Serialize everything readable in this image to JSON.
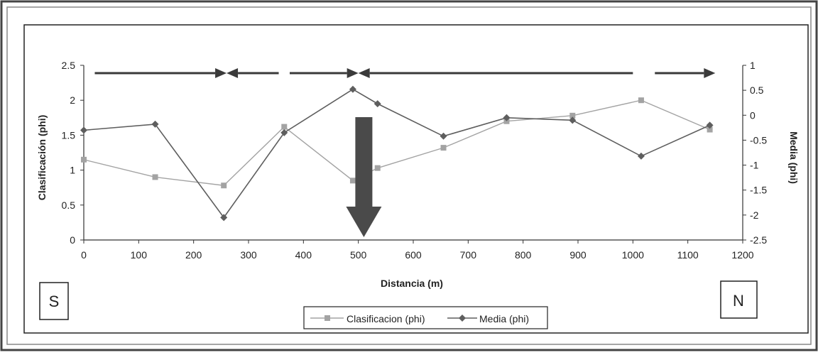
{
  "chart_data": {
    "type": "line",
    "title": "",
    "xlabel": "Distancia (m)",
    "ylabel_left": "Clasificación (phi)",
    "ylabel_right": "Media (phi)",
    "xlim": [
      0,
      1200
    ],
    "xticks": [
      0,
      100,
      200,
      300,
      400,
      500,
      600,
      700,
      800,
      900,
      1000,
      1100,
      1200
    ],
    "ylim_left": [
      0,
      2.5
    ],
    "yticks_left": [
      "0",
      "0.5",
      "1",
      "1.5",
      "2",
      "2.5"
    ],
    "ylim_right": [
      -2.5,
      1
    ],
    "yticks_right": [
      "-2.5",
      "-2",
      "-1.5",
      "-1",
      "-0.5",
      "0",
      "0.5",
      "1"
    ],
    "grid": false,
    "legend_position": "bottom",
    "series": [
      {
        "name": "Clasificacion (phi)",
        "axis": "left",
        "marker": "square",
        "color": "#a3a3a3",
        "x": [
          0,
          130,
          255,
          365,
          490,
          535,
          655,
          770,
          890,
          1015,
          1140
        ],
        "y": [
          1.15,
          0.9,
          0.78,
          1.62,
          0.85,
          1.03,
          1.32,
          1.7,
          1.78,
          2.0,
          1.58
        ]
      },
      {
        "name": "Media (phi)",
        "axis": "right",
        "marker": "diamond",
        "color": "#5e5e5e",
        "x": [
          0,
          130,
          255,
          365,
          490,
          535,
          655,
          770,
          890,
          1015,
          1140
        ],
        "y": [
          -0.3,
          -0.18,
          -2.05,
          -0.35,
          0.52,
          0.23,
          -0.42,
          -0.05,
          -0.1,
          -0.82,
          -0.2
        ]
      }
    ],
    "annotations": {
      "left_label": "S",
      "right_label": "N",
      "transport_arrows": [
        {
          "from": 20,
          "to": 260
        },
        {
          "from": 355,
          "to": 260
        },
        {
          "from": 375,
          "to": 500
        },
        {
          "from": 1000,
          "to": 500
        },
        {
          "from": 1040,
          "to": 1150
        }
      ],
      "marked_distance": 510
    }
  },
  "legend": {
    "items": [
      "Clasificacion (phi)",
      "Media (phi)"
    ]
  },
  "labels": {
    "south": "S",
    "north": "N"
  }
}
